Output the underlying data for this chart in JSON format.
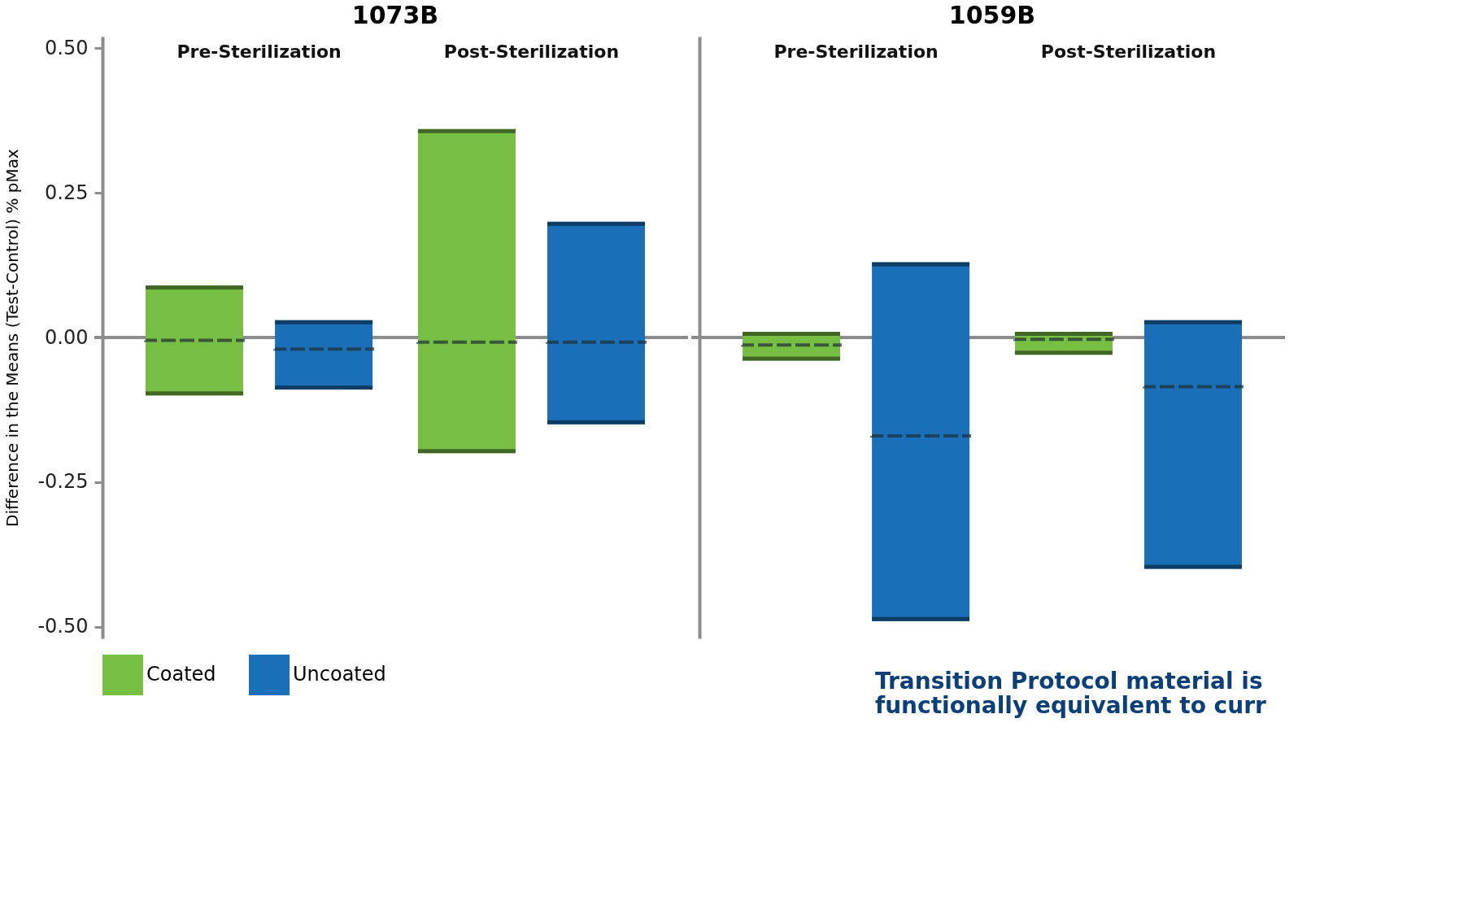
{
  "chart_data": [
    {
      "type": "box",
      "title": "1073B",
      "ylabel": "Difference in the Means (Test-Control) % pMax",
      "categories": [
        "Pre-Sterilization",
        "Post-Sterilization"
      ],
      "ylim": [
        -0.52,
        0.52
      ],
      "yticks": [
        {
          "value": 0.5,
          "label": "0.50"
        },
        {
          "value": 0.25,
          "label": "0.25"
        },
        {
          "value": 0,
          "label": "0.00"
        },
        {
          "value": -0.25,
          "label": "-0.25"
        },
        {
          "value": -0.5,
          "label": "-0.50"
        }
      ],
      "grid": false,
      "legend": "bottom left",
      "ref_lines": [
        {
          "axis": "y",
          "value": 0,
          "color": "#8c8c8c"
        }
      ],
      "series": [
        {
          "name": "Coated",
          "color": "#77bf43",
          "boxes": [
            {
              "low": -0.1,
              "q1": -0.1,
              "median": -0.005,
              "q3": 0.09,
              "high": 0.09
            },
            {
              "low": -0.2,
              "q1": -0.2,
              "median": -0.008,
              "q3": 0.36,
              "high": 0.36
            }
          ]
        },
        {
          "name": "Uncoated",
          "color": "#1a70b8",
          "boxes": [
            {
              "low": -0.09,
              "q1": -0.09,
              "median": -0.02,
              "q3": 0.03,
              "high": 0.03
            },
            {
              "low": -0.15,
              "q1": -0.15,
              "median": -0.008,
              "q3": 0.2,
              "high": 0.2
            }
          ]
        }
      ]
    },
    {
      "type": "box",
      "title": "1059B",
      "categories": [
        "Pre-Sterilization",
        "Post-Sterilization"
      ],
      "ylim": [
        -0.52,
        0.52
      ],
      "tick_labels": "x",
      "grid": false,
      "legend": false,
      "ref_lines": [
        {
          "axis": "y",
          "value": 0,
          "color": "#8c8c8c"
        }
      ],
      "annotations": [
        "Transition Protocol material is\nfunctionally equivalent to curr"
      ],
      "series": [
        {
          "color": "#77bf43",
          "boxes": [
            {
              "low": -0.04,
              "q1": -0.04,
              "median": -0.013,
              "q3": 0.01,
              "high": 0.01
            },
            {
              "low": -0.03,
              "q1": -0.03,
              "median": -0.003,
              "q3": 0.01,
              "high": 0.01
            }
          ]
        },
        {
          "color": "#1a70b8",
          "boxes": [
            {
              "low": -0.49,
              "q1": -0.49,
              "median": -0.17,
              "q3": 0.13,
              "high": 0.13
            },
            {
              "low": -0.4,
              "q1": -0.4,
              "median": -0.085,
              "q3": 0.03,
              "high": 0.03
            }
          ]
        }
      ]
    }
  ]
}
